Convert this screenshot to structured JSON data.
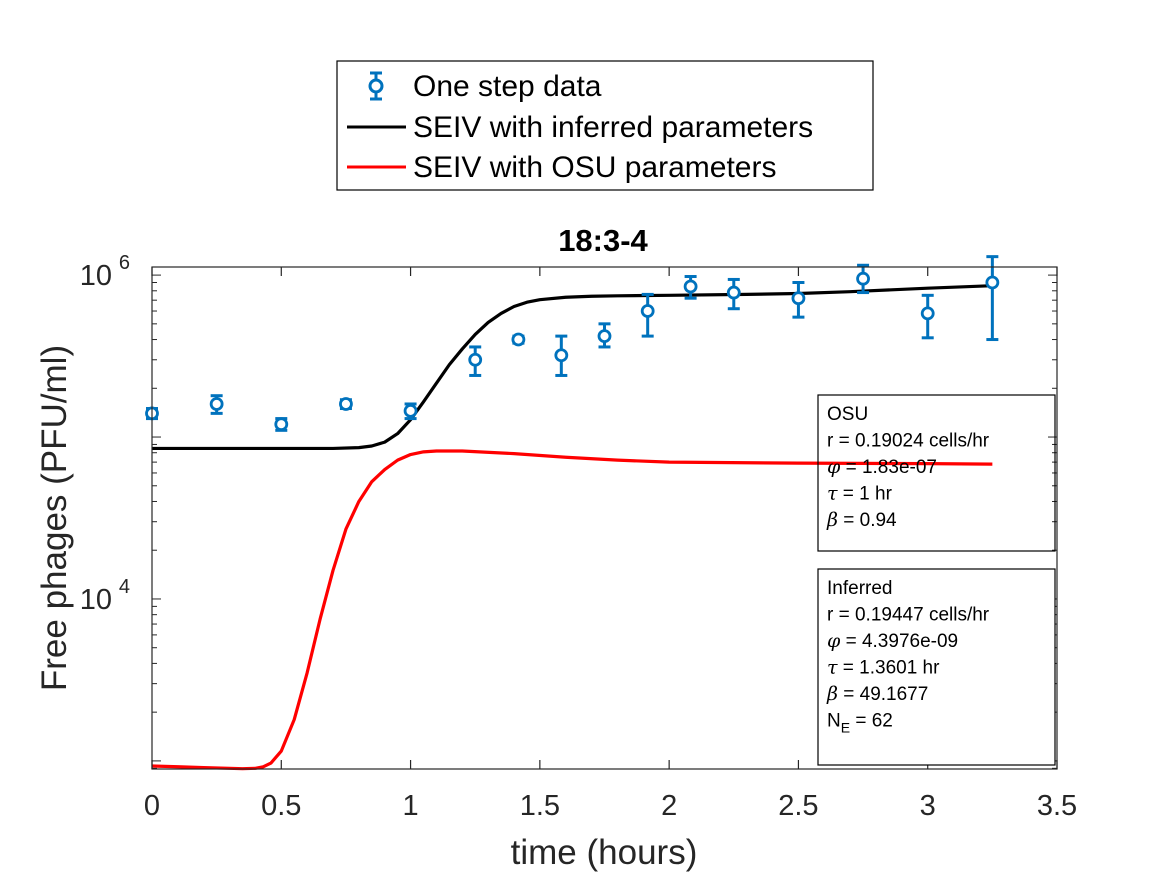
{
  "chart_data": {
    "type": "line",
    "title": "18:3-4",
    "xlabel": "time (hours)",
    "ylabel": "Free phages (PFU/ml)",
    "xlim": [
      0,
      3.5
    ],
    "ylim_log10": [
      2.95,
      6.05
    ],
    "yscale": "log",
    "grid": false,
    "xticks": [
      "0",
      "0.5",
      "1",
      "1.5",
      "2",
      "2.5",
      "3",
      "3.5"
    ],
    "xtick_values": [
      0,
      0.5,
      1,
      1.5,
      2,
      2.5,
      3,
      3.5
    ],
    "yticks": [
      {
        "base": "10",
        "exp": "4",
        "value": 10000
      },
      {
        "base": "10",
        "exp": "6",
        "value": 1000000
      }
    ],
    "legend": {
      "position": "top, outside",
      "entries": [
        {
          "label": "One step data",
          "color": "#0072BD",
          "style": "errorbar-circle"
        },
        {
          "label": "SEIV with inferred parameters",
          "color": "#000000",
          "style": "line"
        },
        {
          "label": "SEIV with OSU parameters",
          "color": "#FF0000",
          "style": "line"
        }
      ]
    },
    "data_points": {
      "name": "One step data",
      "color": "#0072BD",
      "x": [
        0,
        0.25,
        0.5,
        0.75,
        1.0,
        1.25,
        1.417,
        1.583,
        1.75,
        1.917,
        2.083,
        2.25,
        2.5,
        2.75,
        3.0,
        3.25
      ],
      "y": [
        140000,
        160000,
        120000,
        160000,
        145000,
        300000,
        400000,
        320000,
        420000,
        600000,
        850000,
        780000,
        720000,
        950000,
        580000,
        900000
      ],
      "ylow": [
        130000,
        140000,
        110000,
        150000,
        130000,
        240000,
        380000,
        240000,
        360000,
        420000,
        720000,
        620000,
        550000,
        780000,
        410000,
        400000
      ],
      "yhigh": [
        150000,
        180000,
        130000,
        170000,
        160000,
        360000,
        420000,
        420000,
        500000,
        760000,
        980000,
        940000,
        900000,
        1150000,
        750000,
        1300000
      ]
    },
    "series": [
      {
        "name": "SEIV with inferred parameters",
        "color": "#000000",
        "x": [
          0,
          0.5,
          0.7,
          0.8,
          0.85,
          0.9,
          0.95,
          1.0,
          1.05,
          1.1,
          1.15,
          1.2,
          1.25,
          1.3,
          1.35,
          1.4,
          1.45,
          1.5,
          1.6,
          1.7,
          1.8,
          2.0,
          2.3,
          2.5,
          2.7,
          3.0,
          3.25
        ],
        "y": [
          85000,
          85000,
          85000,
          86000,
          88000,
          93000,
          105000,
          128000,
          165000,
          215000,
          280000,
          350000,
          430000,
          510000,
          580000,
          640000,
          680000,
          705000,
          730000,
          740000,
          745000,
          750000,
          760000,
          770000,
          790000,
          830000,
          860000
        ]
      },
      {
        "name": "SEIV with OSU parameters",
        "color": "#FF0000",
        "x": [
          0,
          0.1,
          0.2,
          0.3,
          0.35,
          0.4,
          0.43,
          0.46,
          0.5,
          0.55,
          0.6,
          0.65,
          0.7,
          0.75,
          0.8,
          0.85,
          0.9,
          0.95,
          1.0,
          1.05,
          1.1,
          1.2,
          1.4,
          1.6,
          1.8,
          2.0,
          2.5,
          3.0,
          3.25
        ],
        "y": [
          930,
          920,
          910,
          900,
          895,
          900,
          920,
          970,
          1150,
          1800,
          3500,
          7500,
          15000,
          27000,
          40000,
          53000,
          63000,
          72000,
          78000,
          81000,
          82000,
          82000,
          79000,
          75000,
          72000,
          70000,
          69000,
          68500,
          68000
        ]
      }
    ],
    "annotations": [
      {
        "id": "osu",
        "lines": [
          {
            "sym": "",
            "text": "OSU"
          },
          {
            "sym": "",
            "text": "r = 0.19024 cells/hr"
          },
          {
            "sym": "φ",
            "text": " = 1.83e-07"
          },
          {
            "sym": "τ",
            "text": " = 1 hr"
          },
          {
            "sym": "β",
            "text": " = 0.94"
          }
        ]
      },
      {
        "id": "inferred",
        "lines": [
          {
            "sym": "",
            "text": "Inferred"
          },
          {
            "sym": "",
            "text": "r = 0.19447 cells/hr"
          },
          {
            "sym": "φ",
            "text": " = 4.3976e-09"
          },
          {
            "sym": "τ",
            "text": " = 1.3601 hr"
          },
          {
            "sym": "β",
            "text": " = 49.1677"
          },
          {
            "sym": "N",
            "sub": "E",
            "text": " = 62"
          }
        ]
      }
    ]
  }
}
